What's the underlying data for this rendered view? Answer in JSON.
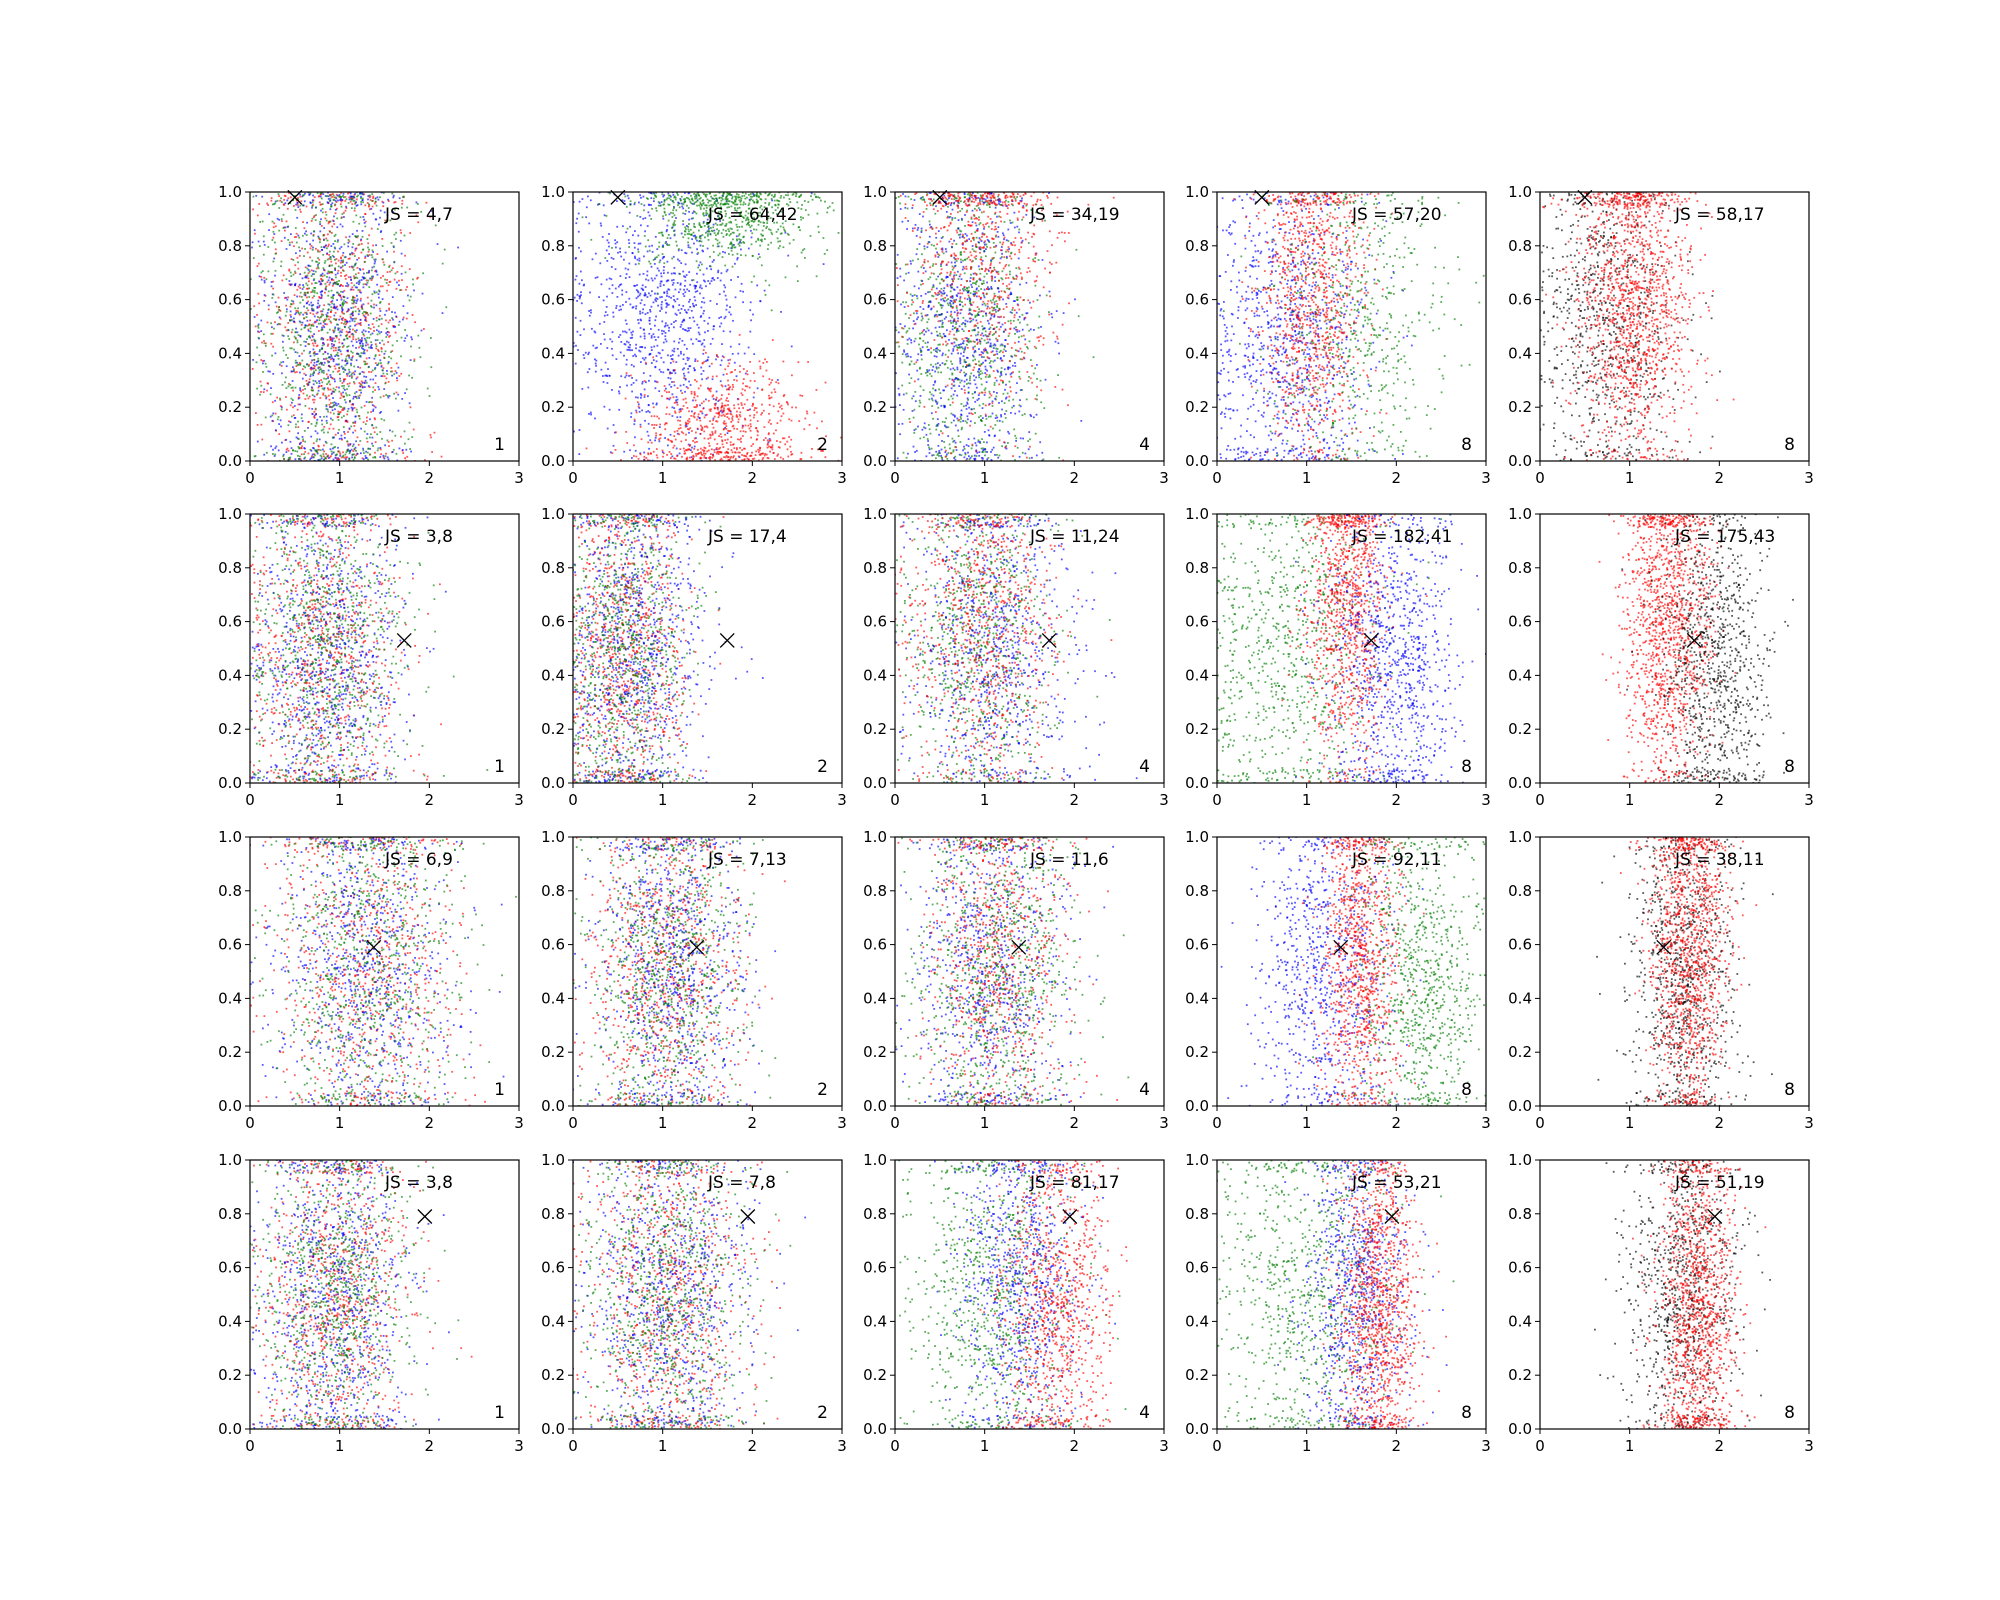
{
  "chart_data": {
    "type": "scatter",
    "layout": {
      "rows": 4,
      "cols": 5
    },
    "xlim": [
      0,
      3
    ],
    "ylim": [
      0,
      1
    ],
    "xticks": [
      "0",
      "1",
      "2",
      "3"
    ],
    "yticks": [
      "0.0",
      "0.2",
      "0.4",
      "0.6",
      "0.8",
      "1.0"
    ],
    "grid": false,
    "colors": {
      "red": "#ff0000",
      "blue": "#0000ff",
      "green": "#008000",
      "black": "#000000"
    },
    "rows": [
      {
        "marker": {
          "x": 0.5,
          "y": 0.98
        },
        "panels": [
          {
            "js": "JS = 4,7",
            "k": "1",
            "clusters": [
              {
                "color": "red",
                "mx": 0.95,
                "sx": 0.42,
                "my": 0.5,
                "sy": 0.32,
                "n": 850
              },
              {
                "color": "blue",
                "mx": 0.95,
                "sx": 0.42,
                "my": 0.5,
                "sy": 0.32,
                "n": 850
              },
              {
                "color": "green",
                "mx": 0.95,
                "sx": 0.42,
                "my": 0.5,
                "sy": 0.32,
                "n": 850
              }
            ]
          },
          {
            "js": "JS = 64,42",
            "k": "2",
            "clusters": [
              {
                "color": "blue",
                "mx": 1.0,
                "sx": 0.5,
                "my": 0.55,
                "sy": 0.25,
                "n": 1000
              },
              {
                "color": "green",
                "mx": 1.7,
                "sx": 0.5,
                "my": 0.92,
                "sy": 0.1,
                "n": 700
              },
              {
                "color": "red",
                "mx": 1.7,
                "sx": 0.5,
                "my": 0.12,
                "sy": 0.12,
                "n": 700
              }
            ]
          },
          {
            "js": "JS = 34,19",
            "k": "4",
            "clusters": [
              {
                "color": "green",
                "mx": 0.8,
                "sx": 0.4,
                "my": 0.5,
                "sy": 0.32,
                "n": 800
              },
              {
                "color": "blue",
                "mx": 0.8,
                "sx": 0.4,
                "my": 0.5,
                "sy": 0.32,
                "n": 800
              },
              {
                "color": "red",
                "mx": 1.0,
                "sx": 0.4,
                "my": 0.75,
                "sy": 0.3,
                "n": 700
              }
            ]
          },
          {
            "js": "JS = 57,20",
            "k": "8",
            "clusters": [
              {
                "color": "blue",
                "mx": 0.8,
                "sx": 0.45,
                "my": 0.45,
                "sy": 0.3,
                "n": 900
              },
              {
                "color": "red",
                "mx": 1.05,
                "sx": 0.3,
                "my": 0.6,
                "sy": 0.3,
                "n": 1000
              },
              {
                "color": "green",
                "mx": 1.6,
                "sx": 0.5,
                "my": 0.5,
                "sy": 0.32,
                "n": 550
              }
            ]
          },
          {
            "js": "JS = 58,17",
            "k": "8",
            "clusters": [
              {
                "color": "black",
                "mx": 0.75,
                "sx": 0.4,
                "my": 0.5,
                "sy": 0.3,
                "n": 800
              },
              {
                "color": "red",
                "mx": 1.05,
                "sx": 0.32,
                "my": 0.6,
                "sy": 0.3,
                "n": 1400
              }
            ]
          }
        ]
      },
      {
        "marker": {
          "x": 1.72,
          "y": 0.53
        },
        "panels": [
          {
            "js": "JS = 3,8",
            "k": "1",
            "clusters": [
              {
                "color": "red",
                "mx": 0.85,
                "sx": 0.42,
                "my": 0.5,
                "sy": 0.32,
                "n": 850
              },
              {
                "color": "blue",
                "mx": 0.85,
                "sx": 0.42,
                "my": 0.5,
                "sy": 0.32,
                "n": 850
              },
              {
                "color": "green",
                "mx": 0.85,
                "sx": 0.42,
                "my": 0.5,
                "sy": 0.32,
                "n": 850
              }
            ]
          },
          {
            "js": "JS = 17,4",
            "k": "2",
            "clusters": [
              {
                "color": "red",
                "mx": 0.6,
                "sx": 0.35,
                "my": 0.5,
                "sy": 0.32,
                "n": 900
              },
              {
                "color": "blue",
                "mx": 0.7,
                "sx": 0.4,
                "my": 0.5,
                "sy": 0.32,
                "n": 900
              },
              {
                "color": "green",
                "mx": 0.6,
                "sx": 0.35,
                "my": 0.5,
                "sy": 0.32,
                "n": 800
              }
            ]
          },
          {
            "js": "JS = 11,24",
            "k": "4",
            "clusters": [
              {
                "color": "green",
                "mx": 0.95,
                "sx": 0.42,
                "my": 0.55,
                "sy": 0.32,
                "n": 800
              },
              {
                "color": "blue",
                "mx": 1.1,
                "sx": 0.45,
                "my": 0.5,
                "sy": 0.32,
                "n": 800
              },
              {
                "color": "red",
                "mx": 0.95,
                "sx": 0.42,
                "my": 0.6,
                "sy": 0.32,
                "n": 800
              }
            ]
          },
          {
            "js": "JS = 182,41",
            "k": "8",
            "clusters": [
              {
                "color": "green",
                "mx": 0.8,
                "sx": 0.5,
                "my": 0.5,
                "sy": 0.32,
                "n": 800
              },
              {
                "color": "red",
                "mx": 1.45,
                "sx": 0.22,
                "my": 0.65,
                "sy": 0.3,
                "n": 1000
              },
              {
                "color": "blue",
                "mx": 2.0,
                "sx": 0.35,
                "my": 0.45,
                "sy": 0.3,
                "n": 900
              }
            ]
          },
          {
            "js": "JS = 175,43",
            "k": "8",
            "clusters": [
              {
                "color": "red",
                "mx": 1.45,
                "sx": 0.25,
                "my": 0.6,
                "sy": 0.3,
                "n": 1300
              },
              {
                "color": "black",
                "mx": 1.95,
                "sx": 0.3,
                "my": 0.45,
                "sy": 0.3,
                "n": 900
              }
            ]
          }
        ]
      },
      {
        "marker": {
          "x": 1.38,
          "y": 0.59
        },
        "panels": [
          {
            "js": "JS = 6,9",
            "k": "1",
            "clusters": [
              {
                "color": "red",
                "mx": 1.3,
                "sx": 0.5,
                "my": 0.5,
                "sy": 0.32,
                "n": 800
              },
              {
                "color": "blue",
                "mx": 1.3,
                "sx": 0.5,
                "my": 0.5,
                "sy": 0.32,
                "n": 800
              },
              {
                "color": "green",
                "mx": 1.3,
                "sx": 0.5,
                "my": 0.5,
                "sy": 0.32,
                "n": 800
              }
            ]
          },
          {
            "js": "JS = 7,13",
            "k": "2",
            "clusters": [
              {
                "color": "red",
                "mx": 1.05,
                "sx": 0.42,
                "my": 0.5,
                "sy": 0.32,
                "n": 850
              },
              {
                "color": "blue",
                "mx": 1.1,
                "sx": 0.42,
                "my": 0.5,
                "sy": 0.32,
                "n": 850
              },
              {
                "color": "green",
                "mx": 1.05,
                "sx": 0.42,
                "my": 0.5,
                "sy": 0.32,
                "n": 800
              }
            ]
          },
          {
            "js": "JS = 11,6",
            "k": "4",
            "clusters": [
              {
                "color": "blue",
                "mx": 1.05,
                "sx": 0.42,
                "my": 0.5,
                "sy": 0.32,
                "n": 800
              },
              {
                "color": "red",
                "mx": 1.15,
                "sx": 0.38,
                "my": 0.55,
                "sy": 0.32,
                "n": 800
              },
              {
                "color": "green",
                "mx": 1.1,
                "sx": 0.45,
                "my": 0.5,
                "sy": 0.32,
                "n": 800
              }
            ]
          },
          {
            "js": "JS = 92,11",
            "k": "8",
            "clusters": [
              {
                "color": "blue",
                "mx": 1.2,
                "sx": 0.38,
                "my": 0.5,
                "sy": 0.3,
                "n": 800
              },
              {
                "color": "red",
                "mx": 1.6,
                "sx": 0.22,
                "my": 0.55,
                "sy": 0.3,
                "n": 1000
              },
              {
                "color": "green",
                "mx": 2.3,
                "sx": 0.35,
                "my": 0.45,
                "sy": 0.3,
                "n": 800
              }
            ]
          },
          {
            "js": "JS = 38,11",
            "k": "8",
            "clusters": [
              {
                "color": "black",
                "mx": 1.6,
                "sx": 0.3,
                "my": 0.5,
                "sy": 0.3,
                "n": 900
              },
              {
                "color": "red",
                "mx": 1.65,
                "sx": 0.22,
                "my": 0.55,
                "sy": 0.3,
                "n": 1200
              }
            ]
          }
        ]
      },
      {
        "marker": {
          "x": 1.95,
          "y": 0.79
        },
        "panels": [
          {
            "js": "JS = 3,8",
            "k": "1",
            "clusters": [
              {
                "color": "red",
                "mx": 0.95,
                "sx": 0.42,
                "my": 0.5,
                "sy": 0.32,
                "n": 850
              },
              {
                "color": "blue",
                "mx": 0.95,
                "sx": 0.42,
                "my": 0.5,
                "sy": 0.32,
                "n": 850
              },
              {
                "color": "green",
                "mx": 0.95,
                "sx": 0.42,
                "my": 0.5,
                "sy": 0.32,
                "n": 850
              }
            ]
          },
          {
            "js": "JS = 7,8",
            "k": "2",
            "clusters": [
              {
                "color": "red",
                "mx": 1.05,
                "sx": 0.45,
                "my": 0.5,
                "sy": 0.32,
                "n": 850
              },
              {
                "color": "blue",
                "mx": 1.05,
                "sx": 0.45,
                "my": 0.5,
                "sy": 0.32,
                "n": 850
              },
              {
                "color": "green",
                "mx": 1.05,
                "sx": 0.45,
                "my": 0.5,
                "sy": 0.32,
                "n": 850
              }
            ]
          },
          {
            "js": "JS = 81,17",
            "k": "4",
            "clusters": [
              {
                "color": "green",
                "mx": 1.1,
                "sx": 0.45,
                "my": 0.5,
                "sy": 0.32,
                "n": 800
              },
              {
                "color": "blue",
                "mx": 1.4,
                "sx": 0.35,
                "my": 0.55,
                "sy": 0.3,
                "n": 800
              },
              {
                "color": "red",
                "mx": 1.8,
                "sx": 0.3,
                "my": 0.45,
                "sy": 0.3,
                "n": 900
              }
            ]
          },
          {
            "js": "JS = 53,21",
            "k": "8",
            "clusters": [
              {
                "color": "green",
                "mx": 1.0,
                "sx": 0.5,
                "my": 0.5,
                "sy": 0.32,
                "n": 800
              },
              {
                "color": "blue",
                "mx": 1.55,
                "sx": 0.3,
                "my": 0.5,
                "sy": 0.3,
                "n": 800
              },
              {
                "color": "red",
                "mx": 1.8,
                "sx": 0.22,
                "my": 0.45,
                "sy": 0.3,
                "n": 1100
              }
            ]
          },
          {
            "js": "JS = 51,19",
            "k": "8",
            "clusters": [
              {
                "color": "black",
                "mx": 1.6,
                "sx": 0.32,
                "my": 0.5,
                "sy": 0.3,
                "n": 900
              },
              {
                "color": "red",
                "mx": 1.75,
                "sx": 0.22,
                "my": 0.45,
                "sy": 0.3,
                "n": 1200
              }
            ]
          }
        ]
      }
    ]
  }
}
